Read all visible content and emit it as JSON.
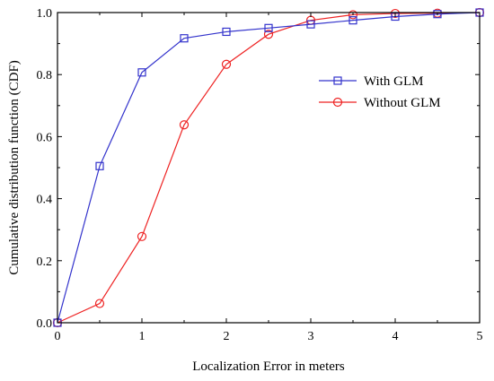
{
  "chart_data": {
    "type": "line",
    "title": "",
    "xlabel": "Localization Error in meters",
    "ylabel": "Cumulative distribution function (CDF)",
    "xlim": [
      0,
      5
    ],
    "ylim": [
      0,
      1.0
    ],
    "xticks": [
      "0",
      "1",
      "2",
      "3",
      "4",
      "5"
    ],
    "yticks": [
      "0.0",
      "0.2",
      "0.4",
      "0.6",
      "0.8",
      "1.0"
    ],
    "grid": false,
    "legend_position": "center-right",
    "series": [
      {
        "name": "With GLM",
        "color": "#3333cc",
        "marker": "square",
        "x": [
          0,
          0.5,
          1.0,
          1.5,
          2.0,
          2.5,
          3.0,
          3.5,
          4.0,
          4.5,
          5.0
        ],
        "y": [
          0.0,
          0.505,
          0.807,
          0.917,
          0.938,
          0.95,
          0.962,
          0.975,
          0.987,
          0.995,
          1.0
        ]
      },
      {
        "name": "Without GLM",
        "color": "#ee2222",
        "marker": "circle",
        "x": [
          0,
          0.5,
          1.0,
          1.5,
          2.0,
          2.5,
          3.0,
          3.5,
          4.0,
          4.5,
          5.0
        ],
        "y": [
          0.0,
          0.062,
          0.278,
          0.638,
          0.833,
          0.93,
          0.975,
          0.993,
          0.997,
          0.998,
          1.0
        ]
      }
    ]
  }
}
